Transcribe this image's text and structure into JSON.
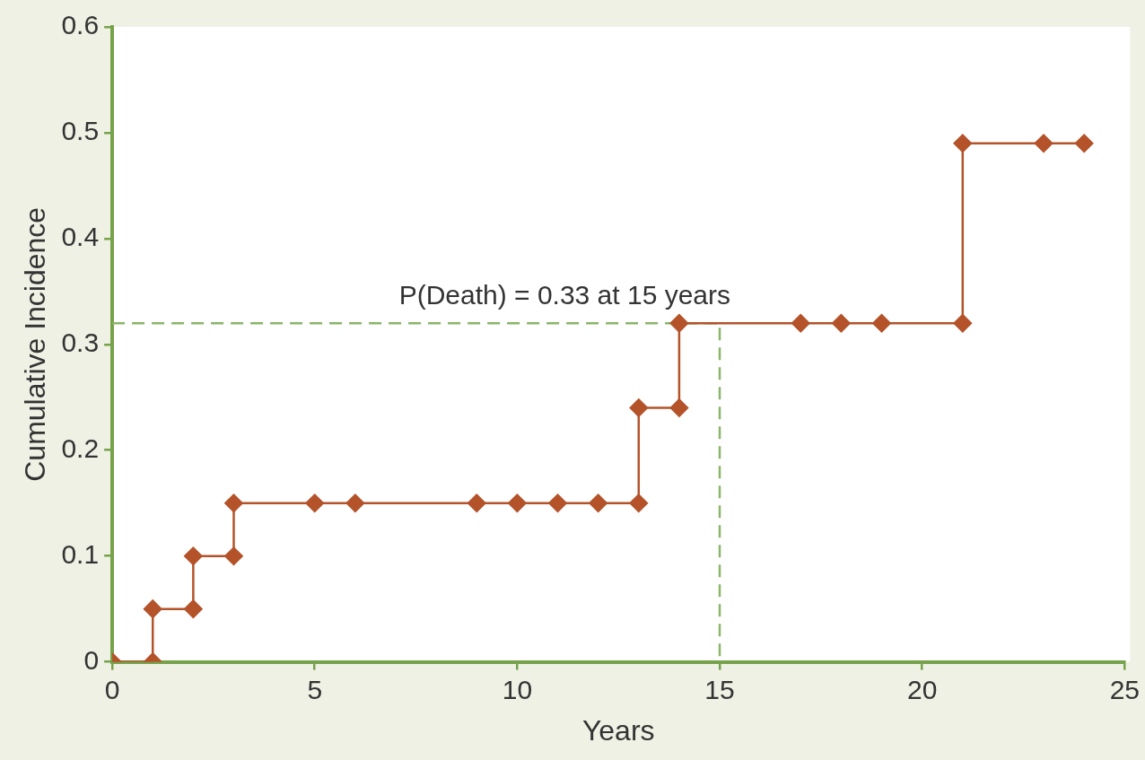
{
  "chart_data": {
    "type": "line",
    "xlabel": "Years",
    "ylabel": "Cumulative Incidence",
    "xlim": [
      0,
      25
    ],
    "xticks": [
      0,
      5,
      10,
      15,
      20,
      25
    ],
    "ylim": [
      0,
      0.6
    ],
    "yticks": [
      0,
      0.1,
      0.2,
      0.3,
      0.4,
      0.5,
      0.6
    ],
    "grid": false,
    "legend": false,
    "series": [
      {
        "color": "#b4532a",
        "marker": "diamond",
        "line_style": "solid",
        "x": [
          0,
          1,
          1,
          2,
          2,
          3,
          3,
          5,
          6,
          9,
          10,
          11,
          12,
          13,
          13,
          14,
          14,
          17,
          18,
          19,
          21,
          21,
          23,
          24
        ],
        "values": [
          0,
          0,
          0.05,
          0.05,
          0.1,
          0.1,
          0.15,
          0.15,
          0.15,
          0.15,
          0.15,
          0.15,
          0.15,
          0.15,
          0.24,
          0.24,
          0.32,
          0.32,
          0.32,
          0.32,
          0.32,
          0.49,
          0.49,
          0.49
        ]
      },
      {
        "color": "#8ab56a",
        "marker": "none",
        "line_style": "dashed",
        "x": [
          0,
          15,
          15
        ],
        "values": [
          0.32,
          0.32,
          0
        ]
      }
    ],
    "annotations": [
      {
        "text": "P(Death) = 0.33 at 15 years",
        "x": 15,
        "y": 0.32
      }
    ]
  }
}
